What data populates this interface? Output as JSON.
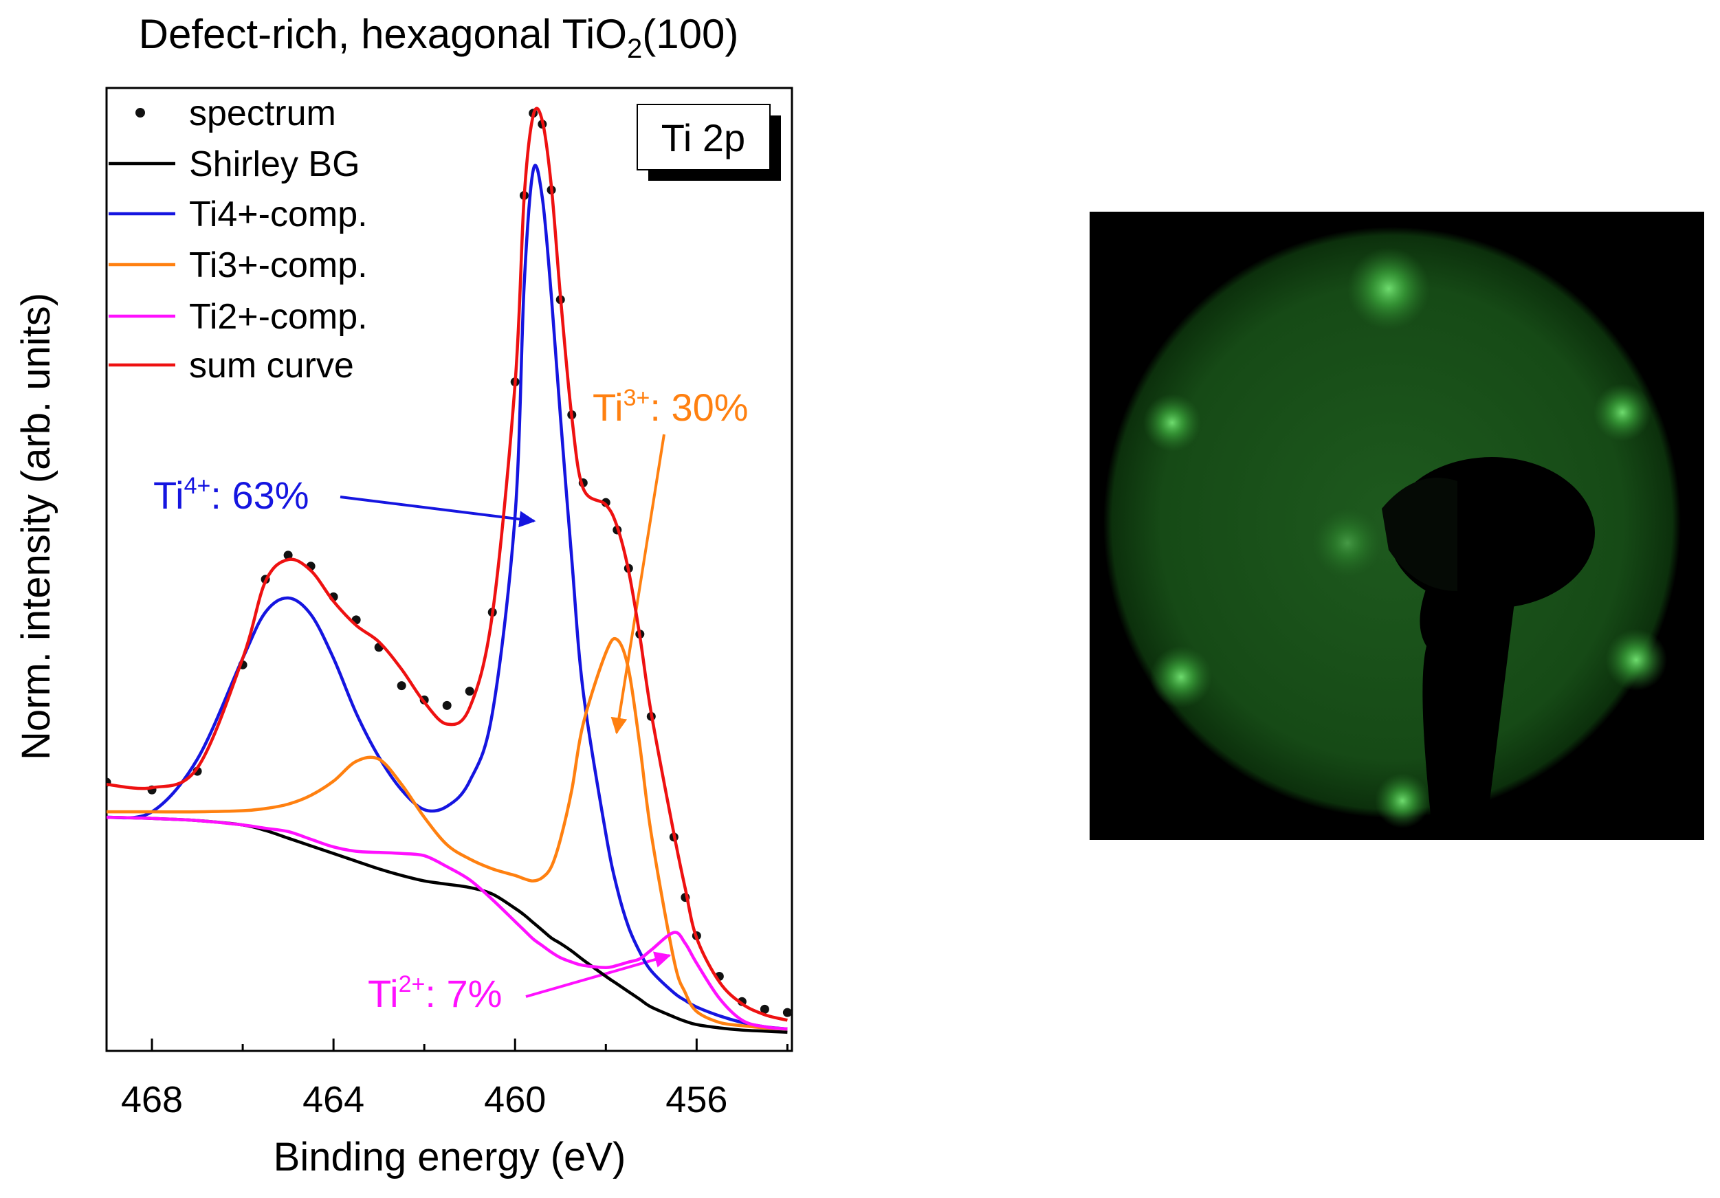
{
  "chart_data": {
    "type": "line",
    "title": {
      "text": "Defect-rich, hexagonal TiO",
      "subscript": "2",
      "suffix": "(100)"
    },
    "x_label": "Binding energy (eV)",
    "y_label": "Norm. intensity (arb. units)",
    "xlim": [
      469,
      453.9
    ],
    "ylim": [
      0,
      878
    ],
    "xticks": [
      468,
      464,
      460,
      456
    ],
    "xminorticks": [
      466,
      462,
      458,
      454
    ],
    "x": [
      469,
      468,
      467,
      466,
      465.5,
      465,
      464.5,
      464,
      463.5,
      463,
      462.5,
      462,
      461.5,
      461,
      460.5,
      460,
      459.8,
      459.6,
      459.4,
      459.2,
      459,
      458.75,
      458.5,
      458,
      457.75,
      457.5,
      457.25,
      457,
      456.5,
      456.25,
      456,
      455.5,
      455,
      454.5,
      454
    ],
    "series": [
      {
        "name": "spectrum",
        "color": "#111111",
        "mode": "markers",
        "values": [
          245,
          238,
          255,
          352,
          430,
          452,
          442,
          414,
          393,
          368,
          333,
          320,
          315,
          328,
          400,
          610,
          780,
          855,
          845,
          785,
          685,
          580,
          518,
          500,
          475,
          440,
          380,
          305,
          195,
          140,
          105,
          68,
          45,
          38,
          35
        ]
      },
      {
        "name": "Shirley BG",
        "color": "#000000",
        "mode": "line",
        "values": [
          213,
          212,
          210,
          206,
          201,
          194,
          187,
          180,
          173,
          166,
          160,
          155,
          152,
          149,
          143,
          130,
          124,
          117,
          110,
          103,
          98,
          91,
          83,
          68,
          61,
          54,
          47,
          40,
          31,
          27,
          24,
          21,
          19,
          18,
          17
        ]
      },
      {
        "name": "Ti4+-comp.",
        "color": "#1515e0",
        "mode": "line",
        "values": [
          213,
          218,
          266,
          358,
          400,
          413,
          398,
          358,
          308,
          268,
          238,
          220,
          223,
          246,
          308,
          488,
          698,
          803,
          778,
          688,
          578,
          448,
          328,
          198,
          148,
          113,
          90,
          73,
          53,
          46,
          40,
          32,
          26,
          22,
          20
        ]
      },
      {
        "name": "Ti3+-comp.",
        "color": "#ff8010",
        "mode": "line",
        "values": [
          218,
          218,
          218,
          219,
          221,
          225,
          233,
          246,
          264,
          266,
          243,
          213,
          188,
          175,
          166,
          160,
          157,
          155,
          158,
          168,
          193,
          238,
          298,
          363,
          375,
          348,
          278,
          198,
          83,
          53,
          36,
          26,
          23,
          21,
          20
        ]
      },
      {
        "name": "Ti2+-comp.",
        "color": "#ff10ff",
        "mode": "line",
        "values": [
          213,
          212,
          210,
          206,
          203,
          200,
          193,
          186,
          182,
          181,
          180,
          178,
          168,
          156,
          138,
          118,
          110,
          102,
          96,
          90,
          85,
          81,
          78,
          76,
          78,
          81,
          84,
          92,
          108,
          98,
          80,
          48,
          28,
          22,
          20
        ]
      },
      {
        "name": "sum curve",
        "color": "#ee1111",
        "mode": "line",
        "values": [
          243,
          240,
          258,
          358,
          428,
          448,
          438,
          410,
          388,
          373,
          348,
          318,
          298,
          313,
          398,
          608,
          778,
          853,
          848,
          788,
          688,
          578,
          513,
          498,
          478,
          438,
          378,
          308,
          198,
          148,
          103,
          63,
          43,
          33,
          28
        ]
      }
    ],
    "label_box": "Ti 2p",
    "annotations": [
      {
        "text": "Ti",
        "superscript": "4+",
        "suffix": ": 63%",
        "color": "#1515e0"
      },
      {
        "text": "Ti",
        "superscript": "3+",
        "suffix": ": 30%",
        "color": "#ff8010"
      },
      {
        "text": "Ti",
        "superscript": "2+",
        "suffix": ": 7%",
        "color": "#ff10ff"
      }
    ]
  }
}
